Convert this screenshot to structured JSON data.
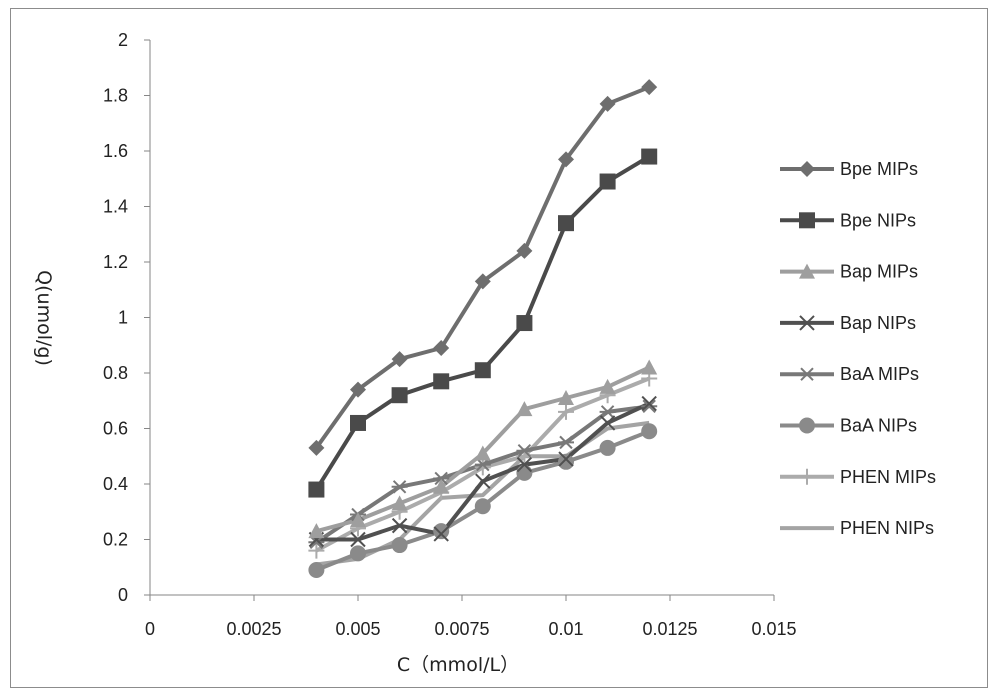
{
  "chart_data": {
    "type": "line",
    "xlabel": "C（mmol/L）",
    "ylabel": "Q(umol/g)",
    "xlim": [
      0,
      0.015
    ],
    "ylim": [
      0,
      2
    ],
    "x_ticks": [
      "0",
      "0.0025",
      "0.005",
      "0.0075",
      "0.01",
      "0.0125",
      "0.015"
    ],
    "y_ticks": [
      "0",
      "0.2",
      "0.4",
      "0.6",
      "0.8",
      "1",
      "1.2",
      "1.4",
      "1.6",
      "1.8",
      "2"
    ],
    "x_tick_values": [
      0,
      0.0025,
      0.005,
      0.0075,
      0.01,
      0.0125,
      0.015
    ],
    "y_tick_values": [
      0,
      0.2,
      0.4,
      0.6,
      0.8,
      1,
      1.2,
      1.4,
      1.6,
      1.8,
      2
    ],
    "grid": false,
    "legend_position": "right",
    "x": [
      0.004,
      0.005,
      0.006,
      0.007,
      0.008,
      0.009,
      0.01,
      0.011,
      0.012
    ],
    "series": [
      {
        "name": "Bpe MIPs",
        "marker": "diamond",
        "color": "#6e6e6e",
        "values": [
          0.53,
          0.74,
          0.85,
          0.89,
          1.13,
          1.24,
          1.57,
          1.77,
          1.83
        ]
      },
      {
        "name": "Bpe NIPs",
        "marker": "square",
        "color": "#4a4a4a",
        "values": [
          0.38,
          0.62,
          0.72,
          0.77,
          0.81,
          0.98,
          1.34,
          1.49,
          1.58
        ]
      },
      {
        "name": "Bap MIPs",
        "marker": "triangle",
        "color": "#9e9e9e",
        "values": [
          0.23,
          0.27,
          0.33,
          0.39,
          0.51,
          0.67,
          0.71,
          0.75,
          0.82
        ]
      },
      {
        "name": "Bap NIPs",
        "marker": "x",
        "color": "#505050",
        "values": [
          0.2,
          0.2,
          0.25,
          0.22,
          0.41,
          0.47,
          0.49,
          0.62,
          0.69
        ]
      },
      {
        "name": "BaA MIPs",
        "marker": "star",
        "color": "#787878",
        "values": [
          0.19,
          0.29,
          0.39,
          0.42,
          0.47,
          0.52,
          0.55,
          0.66,
          0.68
        ]
      },
      {
        "name": "BaA NIPs",
        "marker": "circle",
        "color": "#8a8a8a",
        "values": [
          0.09,
          0.15,
          0.18,
          0.23,
          0.32,
          0.44,
          0.48,
          0.53,
          0.59
        ]
      },
      {
        "name": "PHEN MIPs",
        "marker": "plus",
        "color": "#ababab",
        "values": [
          0.16,
          0.24,
          0.3,
          0.37,
          0.46,
          0.5,
          0.66,
          0.72,
          0.78
        ]
      },
      {
        "name": "PHEN NIPs",
        "marker": "none",
        "color": "#a4a4a4",
        "values": [
          0.11,
          0.13,
          0.2,
          0.35,
          0.36,
          0.5,
          0.5,
          0.6,
          0.62
        ]
      }
    ]
  }
}
